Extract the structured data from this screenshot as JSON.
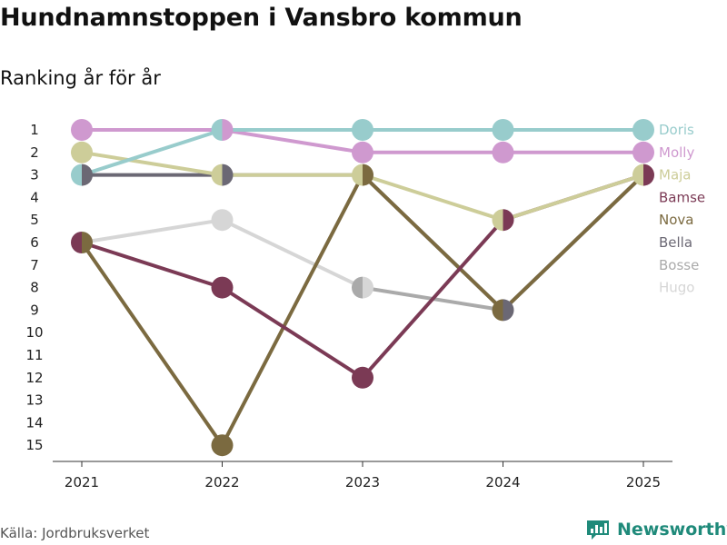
{
  "header": {
    "title": "Hundnamnstoppen i Vansbro kommun",
    "subtitle": "Ranking år för år"
  },
  "footer": {
    "source": "Källa: Jordbruksverket",
    "brand": "Newsworthy",
    "brand_color": "#1f8a7a"
  },
  "chart_data": {
    "type": "line",
    "title": "Hundnamnstoppen i Vansbro kommun",
    "subtitle": "Ranking år för år",
    "x": [
      "2021",
      "2022",
      "2023",
      "2024",
      "2025"
    ],
    "ylim": [
      1,
      15
    ],
    "y_reversed": true,
    "y_ticks": [
      1,
      2,
      3,
      4,
      5,
      6,
      7,
      8,
      9,
      10,
      11,
      12,
      13,
      14,
      15
    ],
    "grid": false,
    "legend_position": "right",
    "draw_order": [
      "Hugo",
      "Bosse",
      "Bella",
      "Nova",
      "Bamse",
      "Maja",
      "Molly",
      "Doris"
    ],
    "series": [
      {
        "name": "Doris",
        "color": "#98cccc",
        "values": [
          3,
          1,
          1,
          1,
          1
        ]
      },
      {
        "name": "Molly",
        "color": "#cf99cf",
        "values": [
          1,
          1,
          2,
          2,
          2
        ]
      },
      {
        "name": "Maja",
        "color": "#cdcd99",
        "values": [
          2,
          3,
          3,
          5,
          3
        ]
      },
      {
        "name": "Bamse",
        "color": "#7b3a55",
        "values": [
          6,
          8,
          12,
          5,
          3
        ]
      },
      {
        "name": "Nova",
        "color": "#7b6a40",
        "values": [
          6,
          15,
          3,
          9,
          3
        ]
      },
      {
        "name": "Bella",
        "color": "#6b6874",
        "values": [
          3,
          3,
          3,
          9,
          3
        ]
      },
      {
        "name": "Bosse",
        "color": "#aaaaaa",
        "values": [
          null,
          null,
          8,
          9,
          null
        ]
      },
      {
        "name": "Hugo",
        "color": "#d6d6d6",
        "values": [
          6,
          5,
          8,
          null,
          null
        ]
      }
    ]
  }
}
